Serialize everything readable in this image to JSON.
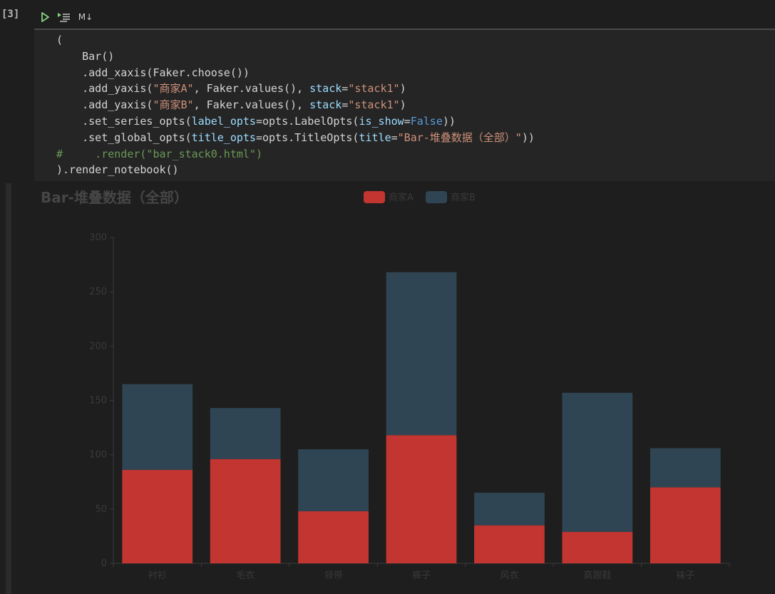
{
  "cell": {
    "execution_count": "[3]",
    "toolbar": {
      "run_icon": "play-icon",
      "run_below_icon": "run-below-icon",
      "markdown_label": "M↓"
    },
    "code_lines": [
      [
        {
          "t": "("
        }
      ],
      [
        {
          "t": "    Bar()"
        }
      ],
      [
        {
          "t": "    .add_xaxis(Faker.choose())"
        }
      ],
      [
        {
          "t": "    .add_yaxis("
        },
        {
          "t": "\"商家A\"",
          "c": "str"
        },
        {
          "t": ", Faker.values(), "
        },
        {
          "t": "stack",
          "c": "kw"
        },
        {
          "t": "="
        },
        {
          "t": "\"stack1\"",
          "c": "str"
        },
        {
          "t": ")"
        }
      ],
      [
        {
          "t": "    .add_yaxis("
        },
        {
          "t": "\"商家B\"",
          "c": "str"
        },
        {
          "t": ", Faker.values(), "
        },
        {
          "t": "stack",
          "c": "kw"
        },
        {
          "t": "="
        },
        {
          "t": "\"stack1\"",
          "c": "str"
        },
        {
          "t": ")"
        }
      ],
      [
        {
          "t": "    .set_series_opts("
        },
        {
          "t": "label_opts",
          "c": "kw"
        },
        {
          "t": "=opts.LabelOpts("
        },
        {
          "t": "is_show",
          "c": "kw"
        },
        {
          "t": "="
        },
        {
          "t": "False",
          "c": "const"
        },
        {
          "t": "))"
        }
      ],
      [
        {
          "t": "    .set_global_opts("
        },
        {
          "t": "title_opts",
          "c": "kw"
        },
        {
          "t": "=opts.TitleOpts("
        },
        {
          "t": "title",
          "c": "kw"
        },
        {
          "t": "="
        },
        {
          "t": "\"Bar-堆叠数据（全部）\"",
          "c": "str"
        },
        {
          "t": "))"
        }
      ],
      [
        {
          "t": "#     .render(\"bar_stack0.html\")",
          "c": "cmt"
        }
      ],
      [
        {
          "t": ").render_notebook()"
        }
      ]
    ]
  },
  "chart_data": {
    "type": "bar",
    "stacked": true,
    "title": "Bar-堆叠数据（全部）",
    "categories": [
      "衬衫",
      "毛衣",
      "领带",
      "裤子",
      "风衣",
      "高跟鞋",
      "袜子"
    ],
    "series": [
      {
        "name": "商家A",
        "color": "#c23531",
        "values": [
          86,
          96,
          48,
          118,
          35,
          29,
          70
        ]
      },
      {
        "name": "商家B",
        "color": "#2f4554",
        "values": [
          79,
          47,
          57,
          150,
          30,
          128,
          36
        ]
      }
    ],
    "ylim": [
      0,
      300
    ],
    "yticks": [
      0,
      50,
      100,
      150,
      200,
      250,
      300
    ],
    "legend_position": "top-center",
    "grid": false,
    "xlabel": "",
    "ylabel": ""
  },
  "colors": {
    "title": "#464646",
    "axis": "#3c3c3c",
    "tick_label": "#3a3a3a",
    "legend_text": "#3a3a3a"
  }
}
